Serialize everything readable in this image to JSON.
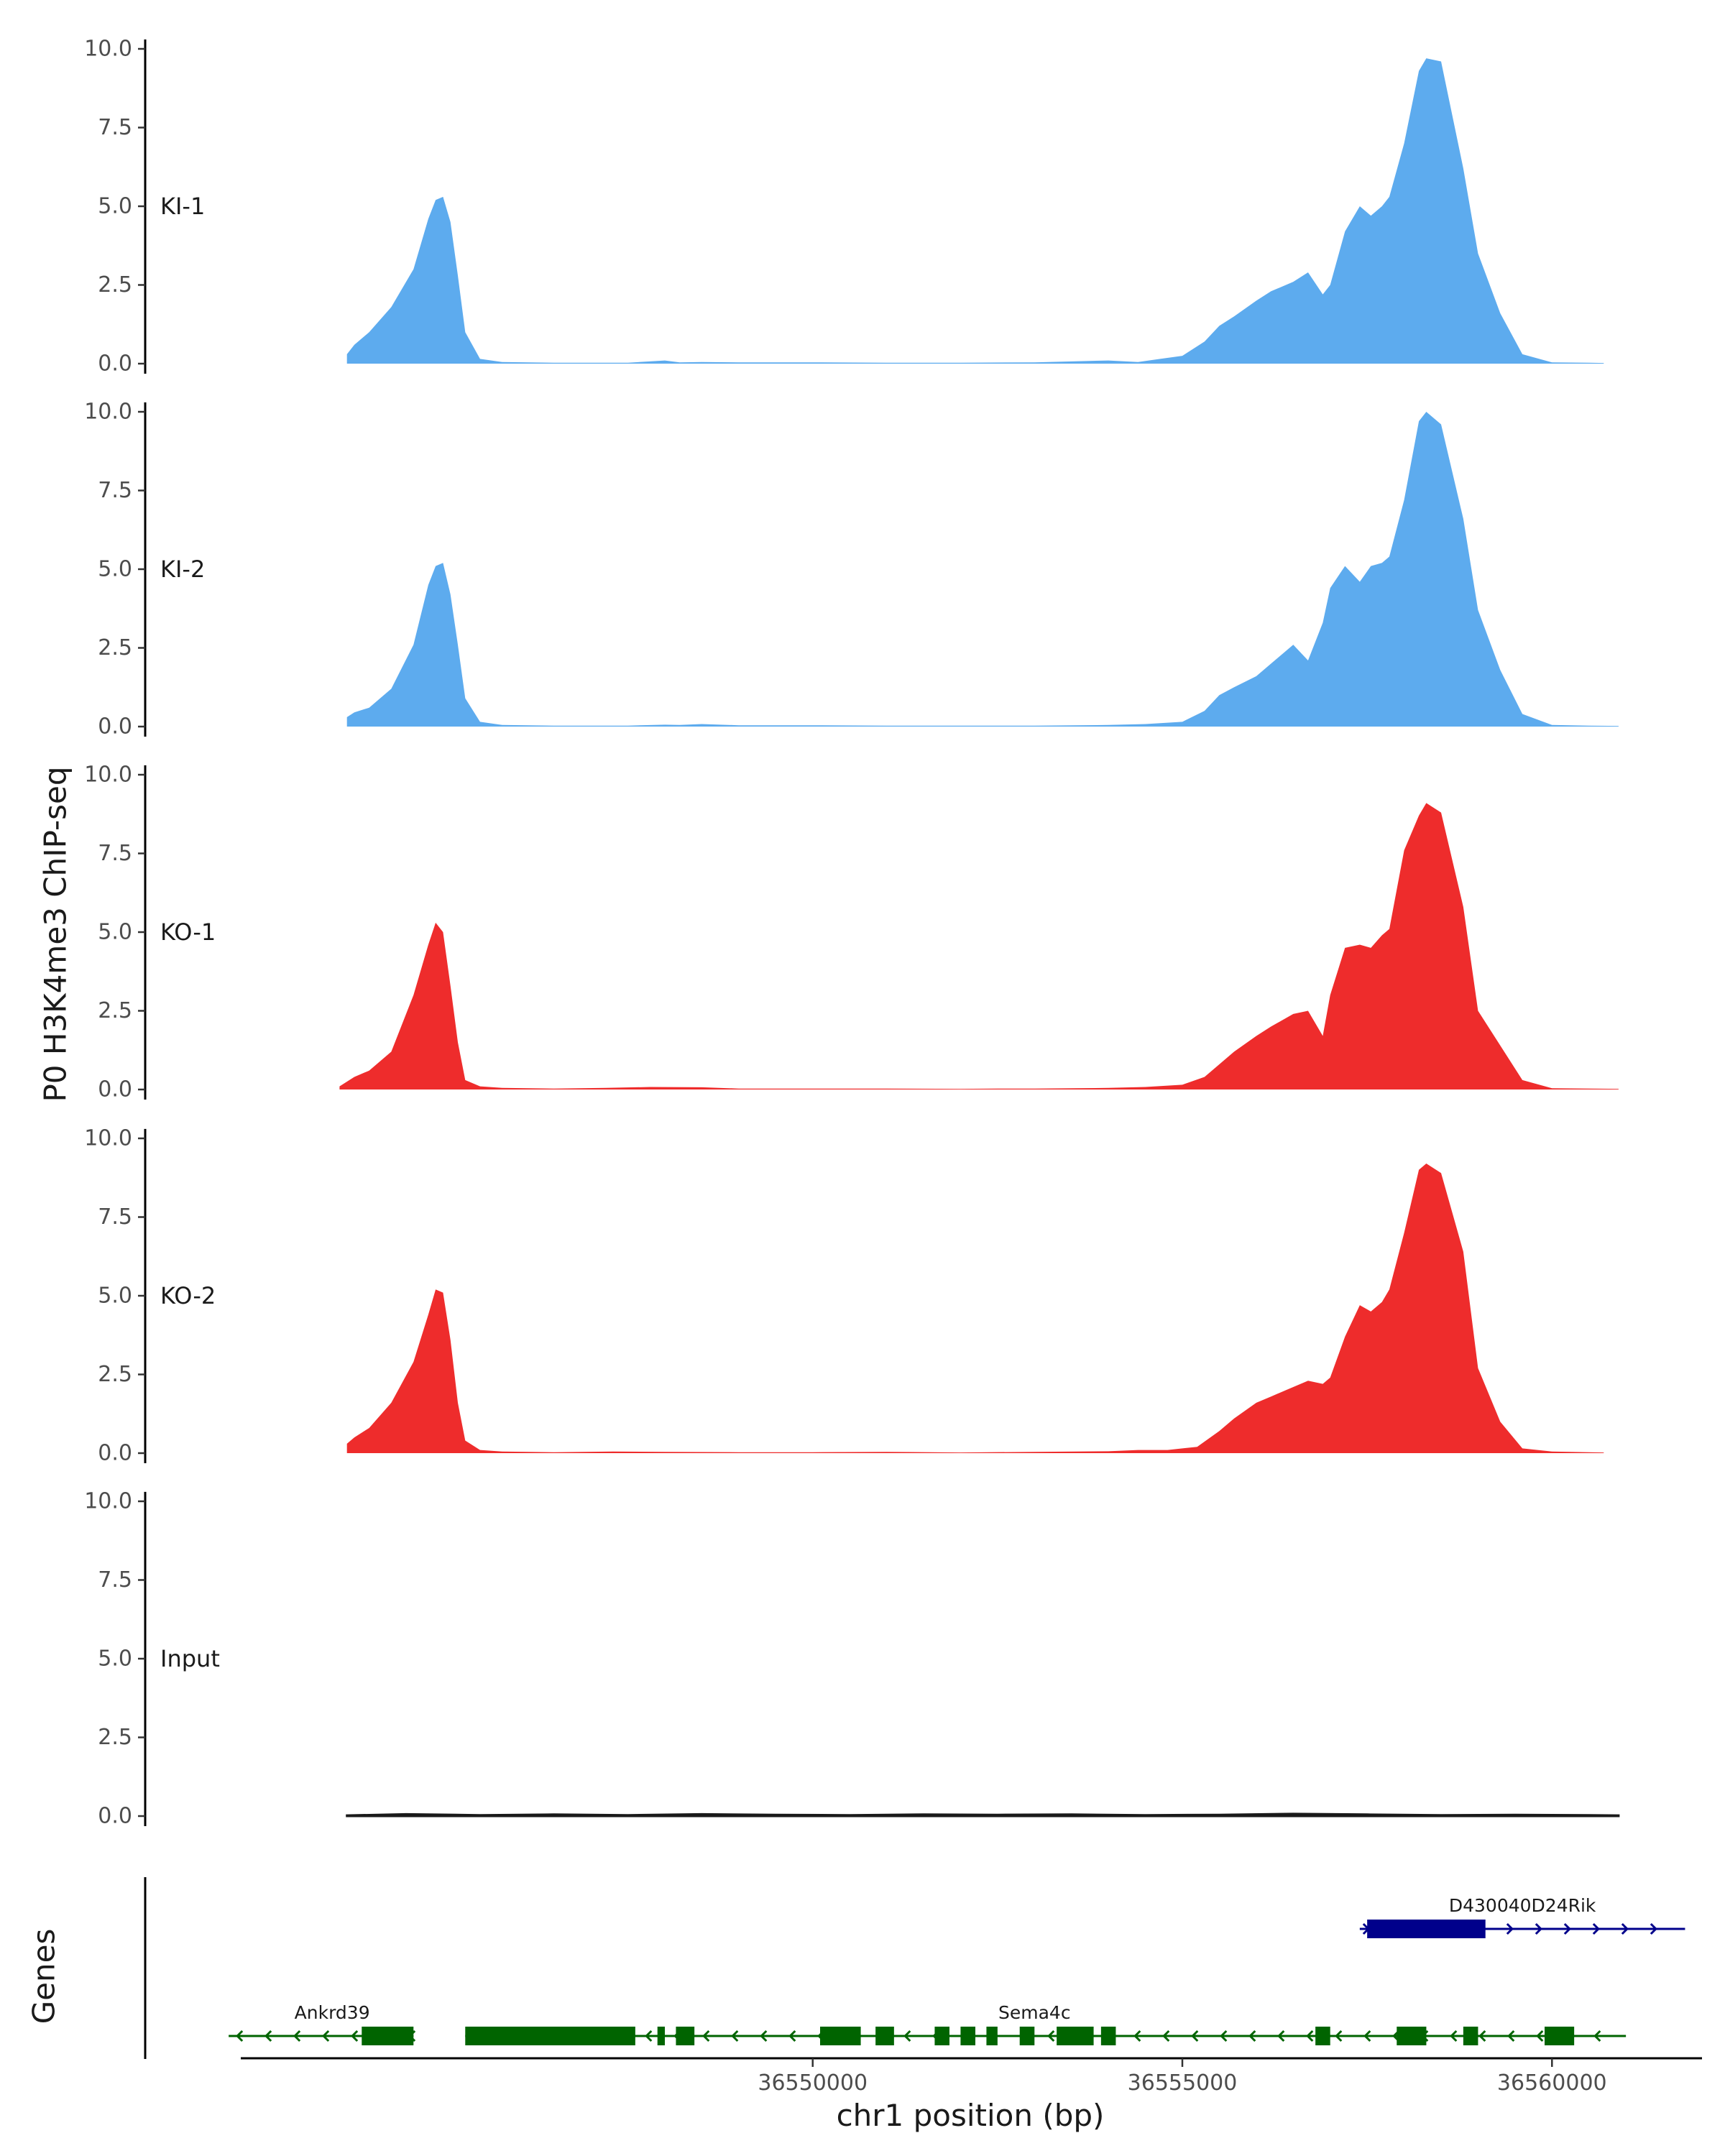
{
  "colors": {
    "ki": "#5dabee",
    "ko": "#ee2c2c",
    "input": "#1a1a1a",
    "gene_minus": "#006400",
    "gene_plus": "#00008b"
  },
  "chart_data": {
    "type": "area",
    "ylabel": "P0 H3K4me3 ChIP-seq",
    "xlabel": "chr1 position (bp)",
    "genes_title": "Genes",
    "x_range": [
      36541000,
      36562000
    ],
    "ylim": [
      0,
      10.5
    ],
    "y_ticks": [
      0,
      2.5,
      5,
      7.5,
      10
    ],
    "y_tick_labels": [
      "0.0",
      "2.5",
      "5.0",
      "7.5",
      "10.0"
    ],
    "x_ticks": [
      36550000,
      36555000,
      36560000
    ],
    "x_tick_labels": [
      "36550000",
      "36555000",
      "36560000"
    ],
    "tracks": [
      {
        "name": "KI-1",
        "color_key": "ki",
        "x": [
          36543700,
          36543800,
          36544000,
          36544300,
          36544600,
          36544800,
          36544900,
          36545000,
          36545100,
          36545200,
          36545300,
          36545500,
          36545800,
          36546500,
          36547500,
          36548000,
          36548200,
          36548500,
          36549000,
          36550000,
          36551000,
          36552000,
          36553000,
          36554000,
          36554400,
          36554700,
          36555000,
          36555300,
          36555500,
          36555700,
          36556000,
          36556200,
          36556500,
          36556700,
          36556900,
          36557000,
          36557200,
          36557400,
          36557550,
          36557700,
          36557800,
          36558000,
          36558200,
          36558300,
          36558500,
          36558800,
          36559000,
          36559300,
          36559600,
          36560000,
          36560500,
          36560700
        ],
        "y": [
          0.3,
          0.6,
          1.0,
          1.8,
          3.0,
          4.6,
          5.2,
          5.3,
          4.5,
          2.8,
          1.0,
          0.15,
          0.05,
          0.03,
          0.03,
          0.1,
          0.04,
          0.05,
          0.04,
          0.04,
          0.03,
          0.03,
          0.04,
          0.1,
          0.05,
          0.15,
          0.25,
          0.7,
          1.2,
          1.5,
          2.0,
          2.3,
          2.6,
          2.9,
          2.2,
          2.5,
          4.2,
          5.0,
          4.7,
          5.0,
          5.3,
          7.0,
          9.3,
          9.7,
          9.6,
          6.2,
          3.5,
          1.6,
          0.3,
          0.04,
          0.03,
          0.02
        ]
      },
      {
        "name": "KI-2",
        "color_key": "ki",
        "x": [
          36543700,
          36543800,
          36544000,
          36544300,
          36544600,
          36544800,
          36544900,
          36545000,
          36545100,
          36545200,
          36545300,
          36545500,
          36545800,
          36546500,
          36547500,
          36548000,
          36548200,
          36548500,
          36549000,
          36550000,
          36551000,
          36552000,
          36553000,
          36554000,
          36554500,
          36555000,
          36555300,
          36555500,
          36555700,
          36556000,
          36556200,
          36556500,
          36556700,
          36556900,
          36557000,
          36557200,
          36557400,
          36557550,
          36557700,
          36557800,
          36558000,
          36558200,
          36558300,
          36558500,
          36558800,
          36559000,
          36559300,
          36559600,
          36560000,
          36560500,
          36560900
        ],
        "y": [
          0.3,
          0.45,
          0.6,
          1.2,
          2.6,
          4.5,
          5.1,
          5.2,
          4.2,
          2.6,
          0.9,
          0.15,
          0.05,
          0.03,
          0.03,
          0.06,
          0.05,
          0.08,
          0.04,
          0.04,
          0.03,
          0.03,
          0.03,
          0.05,
          0.08,
          0.15,
          0.5,
          1.0,
          1.25,
          1.6,
          2.0,
          2.6,
          2.1,
          3.3,
          4.4,
          5.1,
          4.6,
          5.1,
          5.2,
          5.4,
          7.2,
          9.7,
          10.0,
          9.6,
          6.6,
          3.7,
          1.8,
          0.4,
          0.05,
          0.03,
          0.02
        ]
      },
      {
        "name": "KO-1",
        "color_key": "ko",
        "x": [
          36543600,
          36543800,
          36544000,
          36544300,
          36544600,
          36544800,
          36544900,
          36545000,
          36545100,
          36545200,
          36545300,
          36545500,
          36545800,
          36546500,
          36547200,
          36547800,
          36548500,
          36549000,
          36550000,
          36551000,
          36552000,
          36552500,
          36553000,
          36554000,
          36554500,
          36555000,
          36555300,
          36555500,
          36555700,
          36556000,
          36556200,
          36556500,
          36556700,
          36556900,
          36557000,
          36557200,
          36557400,
          36557550,
          36557700,
          36557800,
          36558000,
          36558200,
          36558300,
          36558500,
          36558800,
          36559000,
          36559300,
          36559600,
          36560000,
          36560500,
          36560900
        ],
        "y": [
          0.1,
          0.4,
          0.6,
          1.2,
          3.0,
          4.6,
          5.3,
          5.0,
          3.3,
          1.5,
          0.3,
          0.1,
          0.05,
          0.03,
          0.05,
          0.08,
          0.07,
          0.03,
          0.03,
          0.03,
          0.02,
          0.03,
          0.03,
          0.05,
          0.08,
          0.15,
          0.4,
          0.8,
          1.2,
          1.7,
          2.0,
          2.4,
          2.5,
          1.7,
          3.0,
          4.5,
          4.6,
          4.5,
          4.9,
          5.1,
          7.6,
          8.7,
          9.1,
          8.8,
          5.8,
          2.5,
          1.4,
          0.3,
          0.04,
          0.03,
          0.02
        ]
      },
      {
        "name": "KO-2",
        "color_key": "ko",
        "x": [
          36543700,
          36543800,
          36544000,
          36544300,
          36544600,
          36544800,
          36544900,
          36545000,
          36545100,
          36545200,
          36545300,
          36545500,
          36545800,
          36546500,
          36547300,
          36548000,
          36549000,
          36550000,
          36551000,
          36552000,
          36553000,
          36554000,
          36554400,
          36554800,
          36555200,
          36555500,
          36555700,
          36556000,
          36556200,
          36556400,
          36556700,
          36556900,
          36557000,
          36557200,
          36557400,
          36557550,
          36557700,
          36557800,
          36558000,
          36558200,
          36558300,
          36558500,
          36558800,
          36559000,
          36559300,
          36559600,
          36560000,
          36560500,
          36560700
        ],
        "y": [
          0.3,
          0.5,
          0.8,
          1.6,
          2.9,
          4.4,
          5.2,
          5.1,
          3.6,
          1.6,
          0.4,
          0.1,
          0.05,
          0.03,
          0.05,
          0.04,
          0.03,
          0.03,
          0.04,
          0.02,
          0.04,
          0.06,
          0.1,
          0.1,
          0.2,
          0.7,
          1.1,
          1.6,
          1.8,
          2.0,
          2.3,
          2.2,
          2.4,
          3.7,
          4.7,
          4.5,
          4.8,
          5.2,
          7.0,
          9.0,
          9.2,
          8.9,
          6.4,
          2.7,
          1.0,
          0.15,
          0.05,
          0.03,
          0.02
        ]
      },
      {
        "name": "Input",
        "color_key": "input",
        "x": [
          36543700,
          36544500,
          36545500,
          36546500,
          36547500,
          36548500,
          36549500,
          36550500,
          36551500,
          36552500,
          36553500,
          36554500,
          36555500,
          36556500,
          36557500,
          36558500,
          36559500,
          36560500,
          36560900
        ],
        "y": [
          0.02,
          0.06,
          0.03,
          0.05,
          0.03,
          0.06,
          0.04,
          0.03,
          0.05,
          0.04,
          0.05,
          0.03,
          0.04,
          0.07,
          0.05,
          0.03,
          0.04,
          0.03,
          0.02
        ]
      }
    ],
    "genes": [
      {
        "name": "Ankrd39",
        "strand": "-",
        "color_key": "gene_minus",
        "row": 1,
        "start": 36542100,
        "end": 36544600,
        "exons": [
          [
            36543900,
            36544600
          ]
        ],
        "label_pos": 36543500
      },
      {
        "name": "Sema4c",
        "strand": "-",
        "color_key": "gene_minus",
        "row": 1,
        "start": 36545300,
        "end": 36561000,
        "exons": [
          [
            36545300,
            36547600
          ],
          [
            36547900,
            36548000
          ],
          [
            36548150,
            36548400
          ],
          [
            36550100,
            36550650
          ],
          [
            36550850,
            36551100
          ],
          [
            36551650,
            36551850
          ],
          [
            36552000,
            36552200
          ],
          [
            36552350,
            36552500
          ],
          [
            36552800,
            36553000
          ],
          [
            36553300,
            36553800
          ],
          [
            36553900,
            36554100
          ],
          [
            36556800,
            36557000
          ],
          [
            36557900,
            36558300
          ],
          [
            36558800,
            36559000
          ],
          [
            36559900,
            36560300
          ]
        ],
        "label_pos": 36553000
      },
      {
        "name": "D430040D24Rik",
        "strand": "+",
        "color_key": "gene_plus",
        "row": 0,
        "start": 36557400,
        "end": 36561800,
        "exons": [
          [
            36557500,
            36559100
          ]
        ],
        "label_pos": 36559600
      }
    ]
  }
}
